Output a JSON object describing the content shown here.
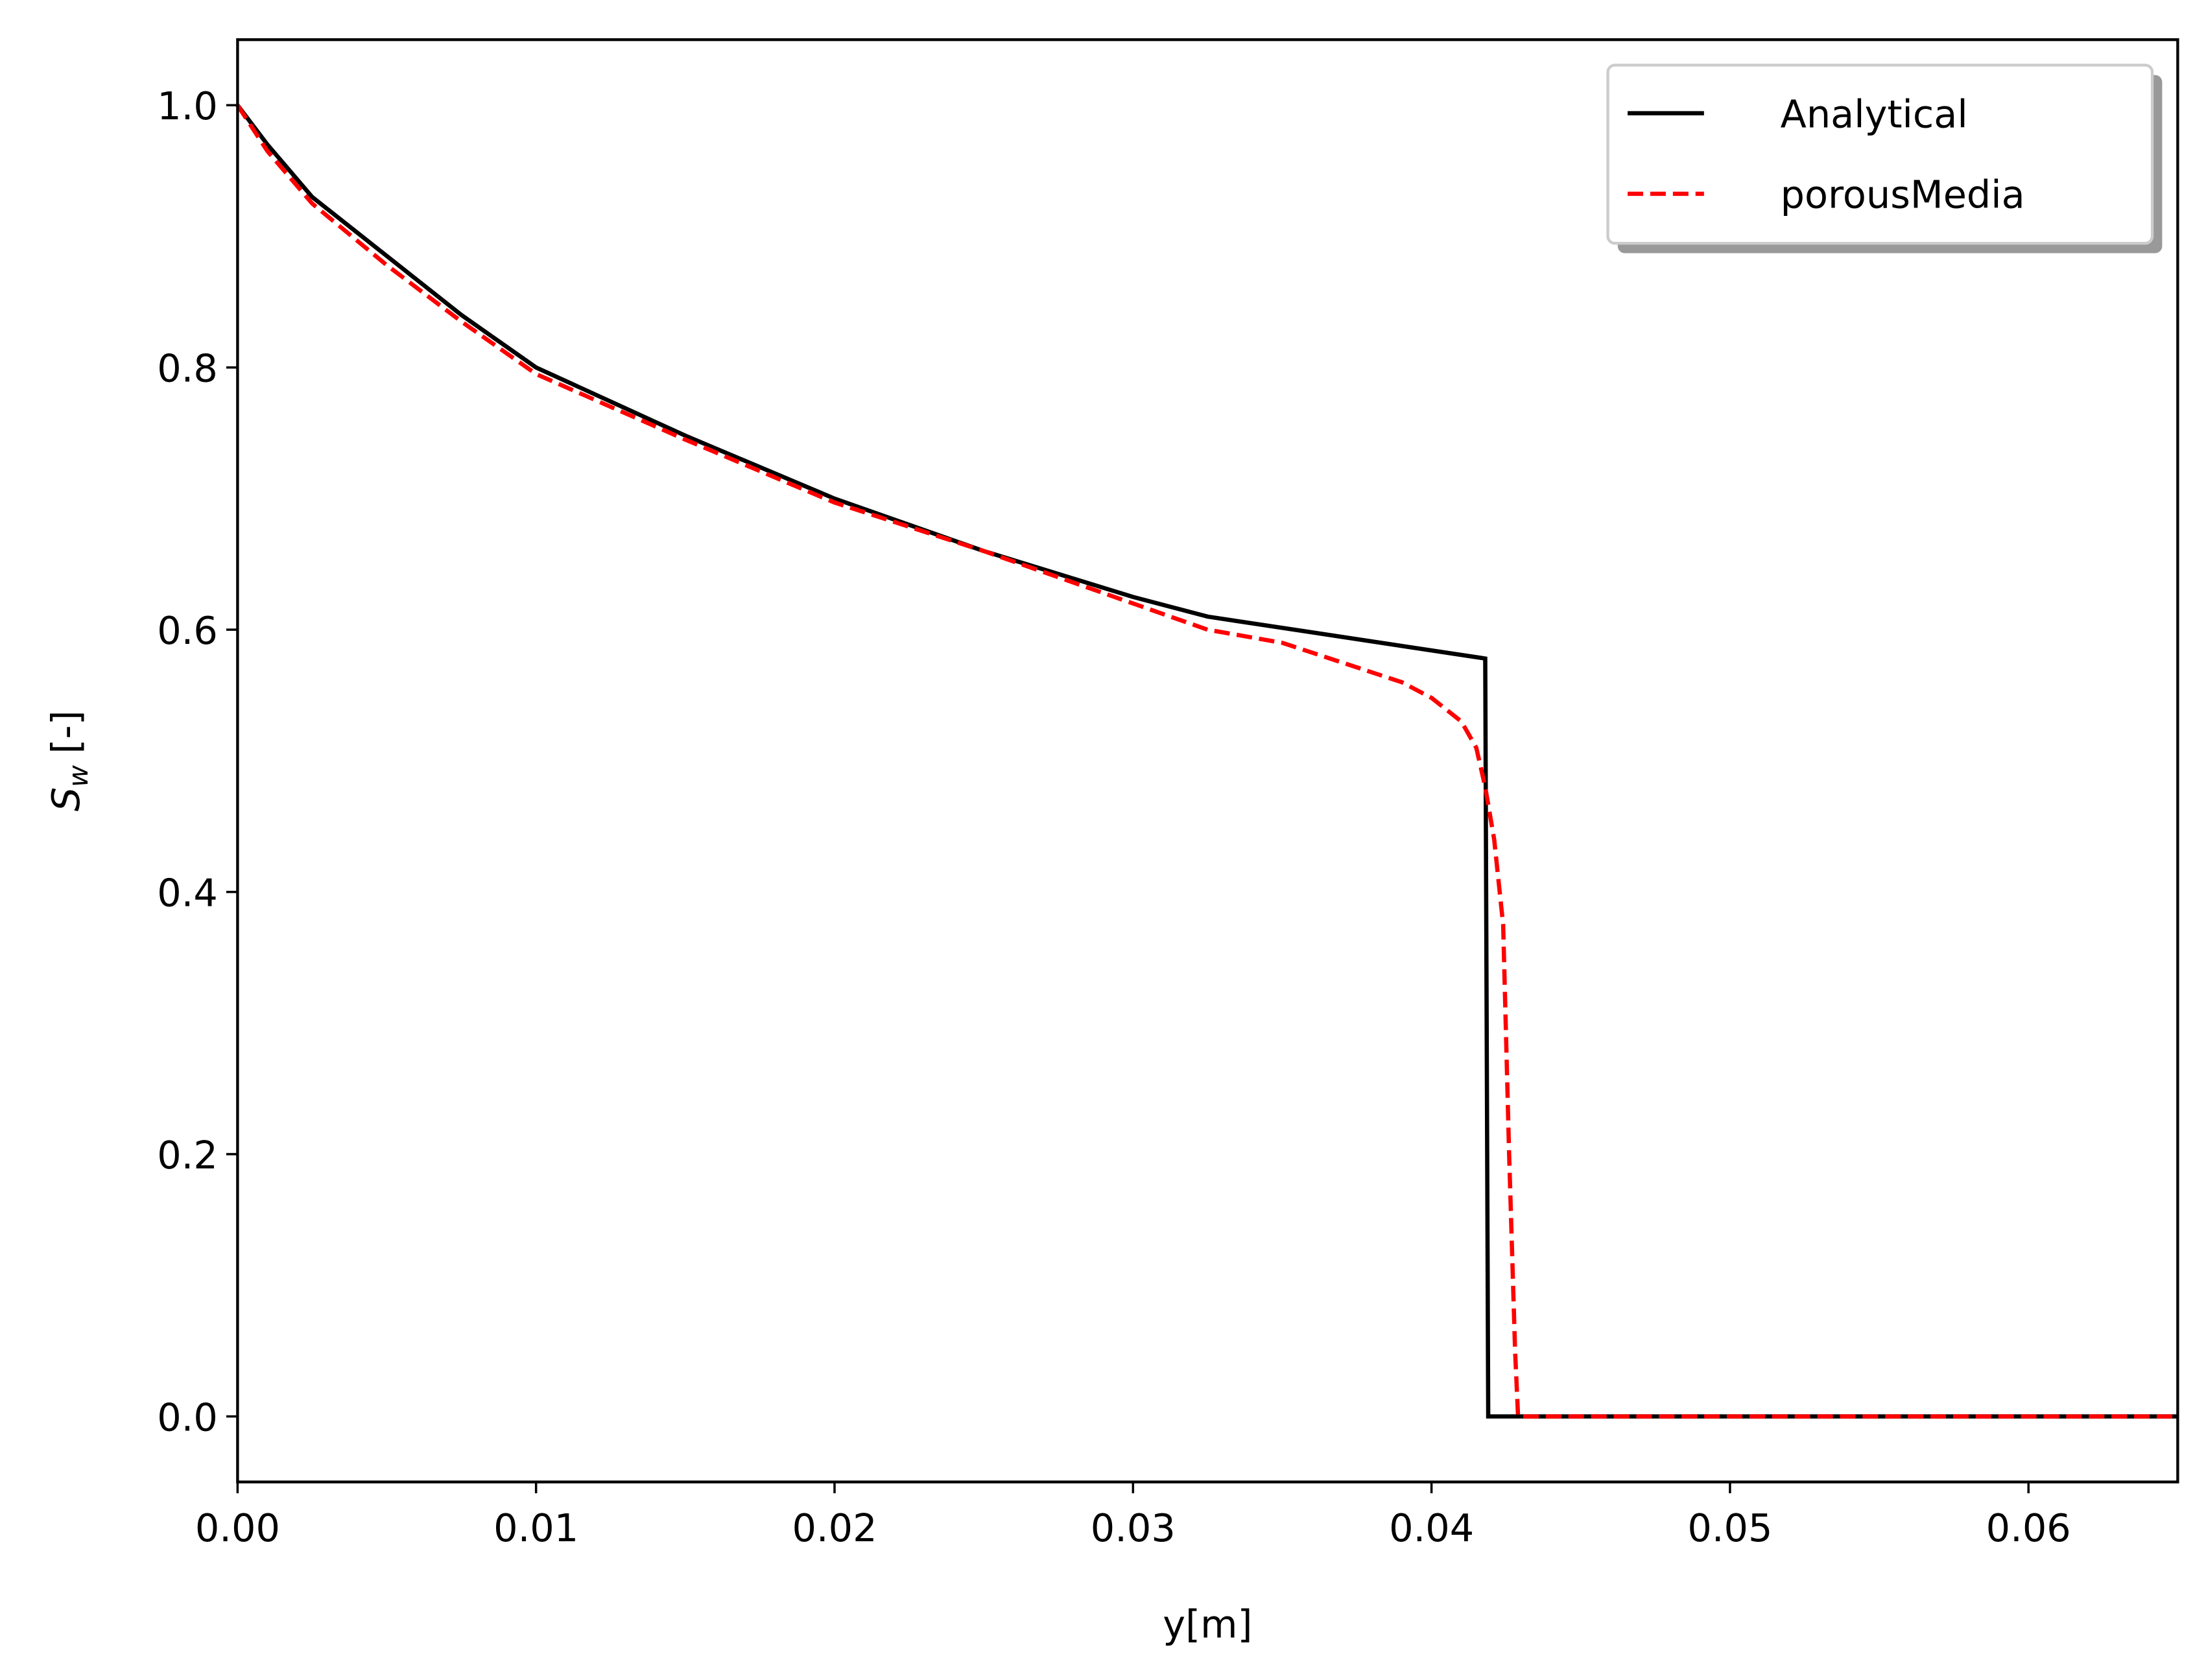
{
  "chart_data": {
    "type": "line",
    "xlabel": "y[m]",
    "ylabel_symbol": "S",
    "ylabel_subscript": "w",
    "ylabel_unit": "[-]",
    "xlim": [
      0,
      0.065
    ],
    "ylim": [
      -0.05,
      1.05
    ],
    "xticks": [
      {
        "value": 0,
        "label": "0.00"
      },
      {
        "value": 0.01,
        "label": "0.01"
      },
      {
        "value": 0.02,
        "label": "0.02"
      },
      {
        "value": 0.03,
        "label": "0.03"
      },
      {
        "value": 0.04,
        "label": "0.04"
      },
      {
        "value": 0.05,
        "label": "0.05"
      },
      {
        "value": 0.06,
        "label": "0.06"
      }
    ],
    "yticks": [
      {
        "value": 0,
        "label": "0.0"
      },
      {
        "value": 0.2,
        "label": "0.2"
      },
      {
        "value": 0.4,
        "label": "0.4"
      },
      {
        "value": 0.6,
        "label": "0.6"
      },
      {
        "value": 0.8,
        "label": "0.8"
      },
      {
        "value": 1,
        "label": "1.0"
      }
    ],
    "legend": "upper right",
    "series": [
      {
        "name": "Analytical",
        "color": "#000000",
        "linestyle": "solid",
        "x": [
          0,
          0.001,
          0.0025,
          0.005,
          0.0075,
          0.01,
          0.015,
          0.02,
          0.025,
          0.03,
          0.0325,
          0.0418,
          0.0419,
          0.065
        ],
        "values": [
          1.0,
          0.97,
          0.93,
          0.885,
          0.84,
          0.8,
          0.748,
          0.7,
          0.66,
          0.625,
          0.61,
          0.578,
          0,
          0
        ]
      },
      {
        "name": "porousMedia",
        "color": "#ff0000",
        "linestyle": "dashed",
        "x": [
          0,
          0.001,
          0.0025,
          0.005,
          0.0075,
          0.01,
          0.015,
          0.02,
          0.025,
          0.03,
          0.0325,
          0.035,
          0.037,
          0.039,
          0.04,
          0.041,
          0.0415,
          0.0418,
          0.0421,
          0.0424,
          0.0426,
          0.0428,
          0.0429,
          0.065
        ],
        "values": [
          1.0,
          0.965,
          0.925,
          0.878,
          0.835,
          0.795,
          0.745,
          0.697,
          0.66,
          0.62,
          0.6,
          0.59,
          0.575,
          0.56,
          0.548,
          0.53,
          0.51,
          0.48,
          0.44,
          0.375,
          0.2,
          0.05,
          0,
          0
        ]
      }
    ]
  }
}
